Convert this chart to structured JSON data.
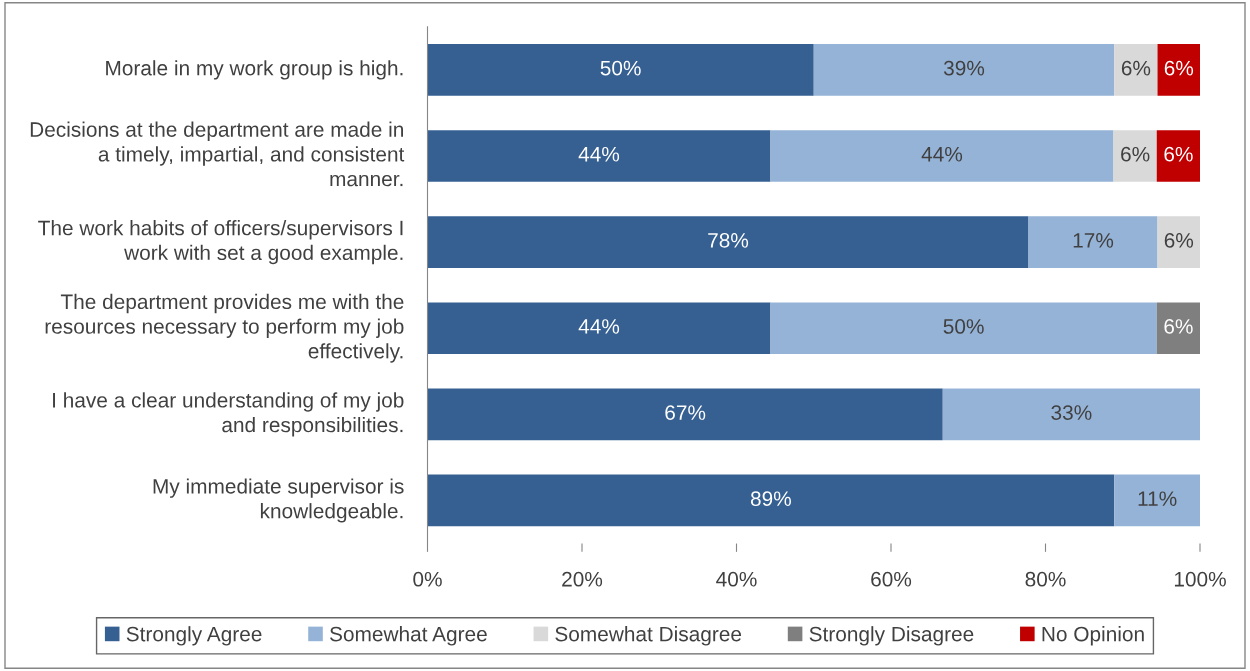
{
  "chart_data": {
    "type": "bar",
    "orientation": "horizontal",
    "stacked": true,
    "categories": [
      "Morale in my work group is high.",
      "Decisions at the department are made in a timely, impartial, and consistent manner.",
      "The work habits of officers/supervisors I work with set a good example.",
      "The department provides me with the resources necessary to perform my job effectively.",
      "I have a clear understanding of my job and responsibilities.",
      "My immediate supervisor is knowledgeable."
    ],
    "series": [
      {
        "name": "Strongly Agree",
        "color": "#376092",
        "values": [
          50,
          44.4,
          77.8,
          44.4,
          66.7,
          88.9
        ],
        "value_labels": [
          "50%",
          "44%",
          "78%",
          "44%",
          "67%",
          "89%"
        ]
      },
      {
        "name": "Somewhat Agree",
        "color": "#95b3d7",
        "values": [
          38.9,
          44.4,
          16.7,
          50,
          33.3,
          11.1
        ],
        "value_labels": [
          "39%",
          "44%",
          "17%",
          "50%",
          "33%",
          "11%"
        ]
      },
      {
        "name": "Somewhat Disagree",
        "color": "#d9d9d9",
        "values": [
          5.6,
          5.6,
          5.5,
          null,
          null,
          null
        ],
        "value_labels": [
          "6%",
          "6%",
          "6%",
          null,
          null,
          null
        ]
      },
      {
        "name": "Strongly Disagree",
        "color": "#7f7f7f",
        "values": [
          null,
          null,
          null,
          5.6,
          null,
          null
        ],
        "value_labels": [
          null,
          null,
          null,
          "6%",
          null,
          null
        ]
      },
      {
        "name": "No Opinion",
        "color": "#c00000",
        "values": [
          5.5,
          5.6,
          null,
          null,
          null,
          null
        ],
        "value_labels": [
          "6%",
          "6%",
          null,
          null,
          null,
          null
        ]
      }
    ],
    "xlim": [
      0,
      100
    ],
    "xticks": [
      {
        "value": 0,
        "label": "0%"
      },
      {
        "value": 20,
        "label": "20%"
      },
      {
        "value": 40,
        "label": "40%"
      },
      {
        "value": 60,
        "label": "60%"
      },
      {
        "value": 80,
        "label": "80%"
      },
      {
        "value": 100,
        "label": "100%"
      }
    ],
    "grid": false,
    "legend": "bottom"
  }
}
